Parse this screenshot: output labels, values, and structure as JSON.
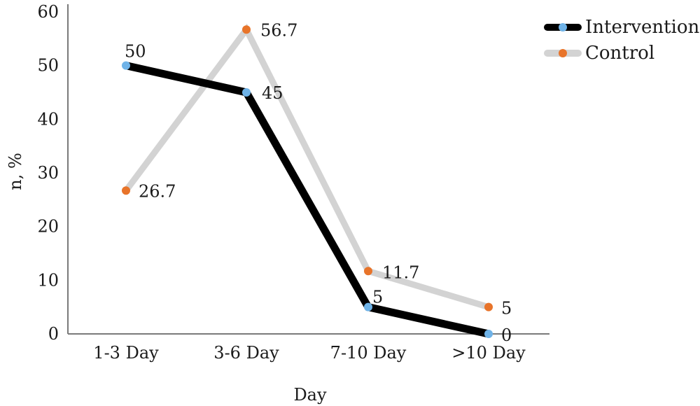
{
  "chart_data": {
    "type": "line",
    "categories": [
      "1-3 Day",
      "3-6 Day",
      "7-10 Day",
      ">10 Day"
    ],
    "series": [
      {
        "name": "Intervention",
        "values": [
          50,
          45,
          5,
          0
        ],
        "color": "#000000",
        "marker_color": "#6fb3e8"
      },
      {
        "name": "Control",
        "values": [
          26.7,
          56.7,
          11.7,
          5
        ],
        "color": "#d3d3d3",
        "marker_color": "#e8742a"
      }
    ],
    "data_labels": {
      "Intervention": [
        "50",
        "45",
        "5",
        "0"
      ],
      "Control": [
        "26.7",
        "56.7",
        "11.7",
        "5"
      ]
    },
    "ylim": [
      0,
      60
    ],
    "yticks": [
      0,
      10,
      20,
      30,
      40,
      50,
      60
    ],
    "xlabel": "Day",
    "ylabel": "n, %",
    "grid": false,
    "legend": "top-right"
  }
}
